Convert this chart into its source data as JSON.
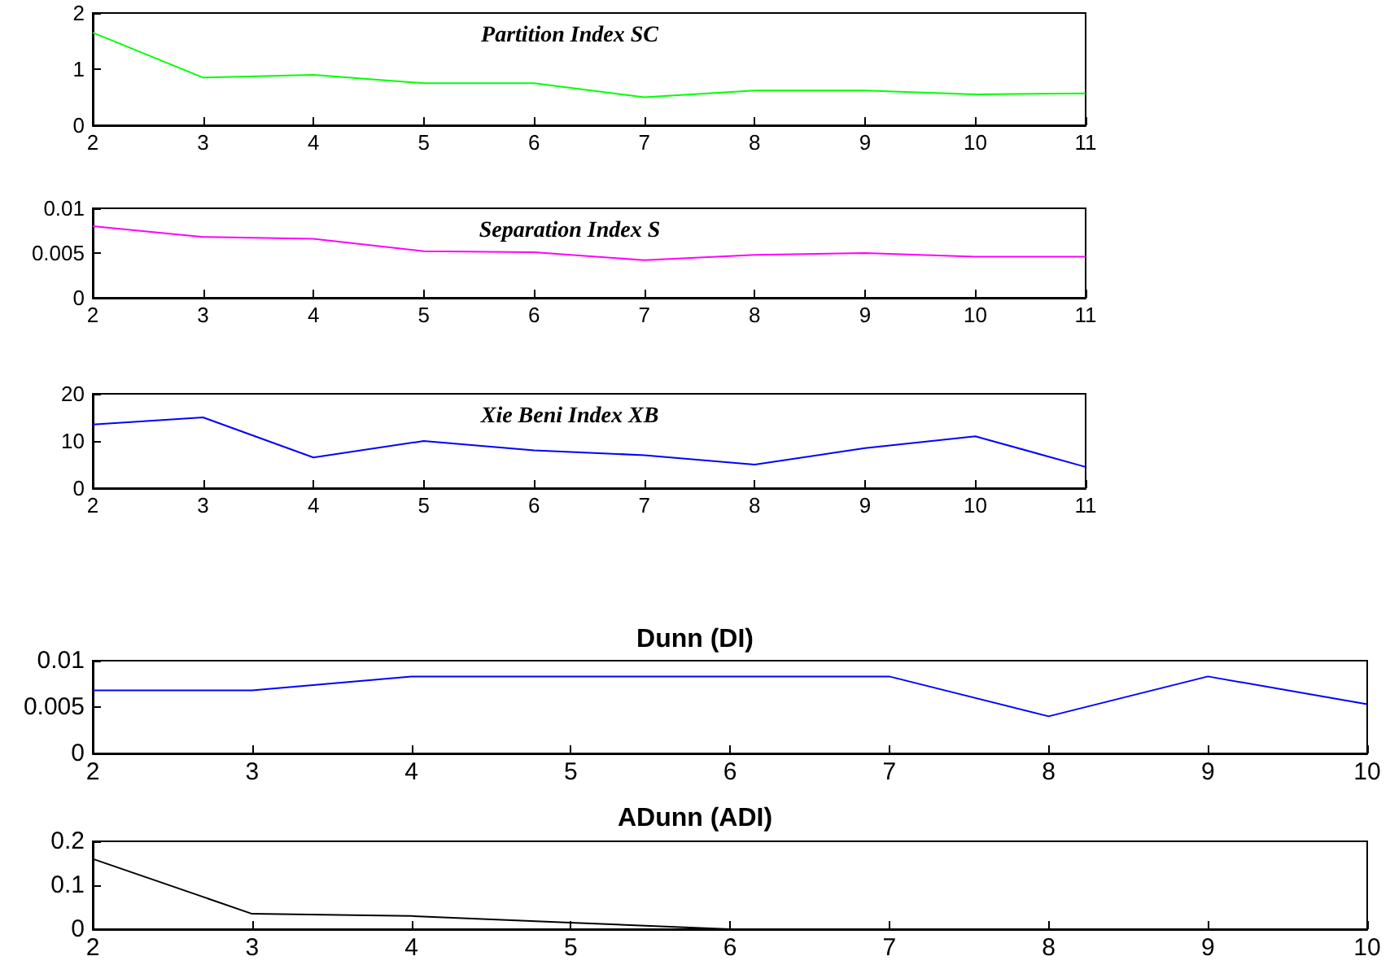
{
  "chart_data": [
    {
      "type": "line",
      "title": "Partition Index SC",
      "x": [
        2,
        3,
        4,
        5,
        6,
        7,
        8,
        9,
        10,
        11
      ],
      "series": [
        {
          "color": "#00ff00",
          "values": [
            1.65,
            0.85,
            0.9,
            0.75,
            0.75,
            0.5,
            0.62,
            0.62,
            0.55,
            0.57
          ]
        }
      ],
      "xlim": [
        2,
        11
      ],
      "xticks": [
        2,
        3,
        4,
        5,
        6,
        7,
        8,
        9,
        10,
        11
      ],
      "ylim": [
        0,
        2
      ],
      "yticks": [
        0,
        1,
        2
      ],
      "grid": false,
      "marker": "none",
      "line_style": "solid"
    },
    {
      "type": "line",
      "title": "Separation Index S",
      "x": [
        2,
        3,
        4,
        5,
        6,
        7,
        8,
        9,
        10,
        11
      ],
      "series": [
        {
          "color": "#ff00ff",
          "values": [
            0.008,
            0.0068,
            0.0066,
            0.0052,
            0.0051,
            0.0042,
            0.0048,
            0.005,
            0.0046,
            0.0046
          ]
        }
      ],
      "xlim": [
        2,
        11
      ],
      "xticks": [
        2,
        3,
        4,
        5,
        6,
        7,
        8,
        9,
        10,
        11
      ],
      "ylim": [
        0,
        0.01
      ],
      "yticks": [
        0,
        0.005,
        0.01
      ],
      "grid": false,
      "marker": "none",
      "line_style": "solid"
    },
    {
      "type": "line",
      "title": "Xie Beni Index XB",
      "x": [
        2,
        3,
        4,
        5,
        6,
        7,
        8,
        9,
        10,
        11
      ],
      "series": [
        {
          "color": "#0000ff",
          "values": [
            13.5,
            15,
            6.5,
            10,
            8,
            7,
            5,
            8.5,
            11,
            4.5
          ]
        }
      ],
      "xlim": [
        2,
        11
      ],
      "xticks": [
        2,
        3,
        4,
        5,
        6,
        7,
        8,
        9,
        10,
        11
      ],
      "ylim": [
        0,
        20
      ],
      "yticks": [
        0,
        10,
        20
      ],
      "grid": false,
      "marker": "none",
      "line_style": "solid"
    },
    {
      "type": "line",
      "title": "Dunn (DI)",
      "x": [
        2,
        3,
        4,
        5,
        6,
        7,
        8,
        9,
        10
      ],
      "series": [
        {
          "color": "#0000ff",
          "values": [
            0.0068,
            0.0068,
            0.0083,
            0.0083,
            0.0083,
            0.0083,
            0.004,
            0.0083,
            0.0053
          ]
        }
      ],
      "xlim": [
        2,
        10
      ],
      "xticks": [
        2,
        3,
        4,
        5,
        6,
        7,
        8,
        9,
        10
      ],
      "ylim": [
        0,
        0.01
      ],
      "yticks": [
        0,
        0.005,
        0.01
      ],
      "grid": false,
      "marker": "none",
      "line_style": "solid"
    },
    {
      "type": "line",
      "title": "ADunn (ADI)",
      "x": [
        2,
        3,
        4,
        5,
        6,
        7,
        8,
        9,
        10
      ],
      "series": [
        {
          "color": "#000000",
          "values": [
            0.16,
            0.035,
            0.03,
            0.015,
            0,
            0,
            0,
            0,
            0
          ]
        }
      ],
      "xlim": [
        2,
        10
      ],
      "xticks": [
        2,
        3,
        4,
        5,
        6,
        7,
        8,
        9,
        10
      ],
      "ylim": [
        0,
        0.2
      ],
      "yticks": [
        0,
        0.1,
        0.2
      ],
      "grid": false,
      "marker": "none",
      "line_style": "solid"
    }
  ]
}
